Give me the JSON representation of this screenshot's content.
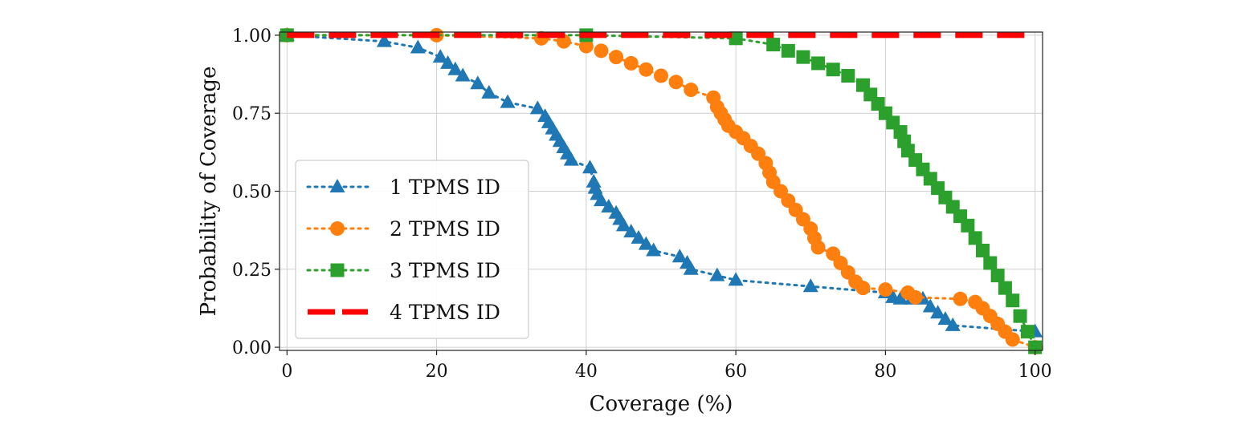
{
  "chart_data": {
    "type": "line",
    "title": "",
    "xlabel": "Coverage (%)",
    "ylabel": "Probability of Coverage",
    "xlim": [
      -1,
      101
    ],
    "ylim": [
      -0.01,
      1.01
    ],
    "xticks": [
      0,
      20,
      40,
      60,
      80,
      100
    ],
    "xtick_labels": [
      "0",
      "20",
      "40",
      "60",
      "80",
      "100"
    ],
    "yticks": [
      0,
      0.25,
      0.5,
      0.75,
      1.0
    ],
    "ytick_labels": [
      "0.00",
      "0.25",
      "0.50",
      "0.75",
      "1.00"
    ],
    "grid": true,
    "legend_position": "center-left",
    "series": [
      {
        "name": "1 TPMS ID",
        "color": "#1f77b4",
        "linestyle": "dotted",
        "marker": "triangle",
        "x": [
          0,
          13,
          17.5,
          20.5,
          21.5,
          22.5,
          23.5,
          25.5,
          27,
          29.5,
          33.5,
          34.5,
          35,
          35.5,
          36,
          36.5,
          37,
          37.5,
          38,
          40.5,
          41,
          41.2,
          41.5,
          42,
          43,
          44,
          44.5,
          45,
          46,
          47,
          48,
          49,
          52.5,
          53.5,
          54,
          57.5,
          60,
          70,
          80,
          81,
          82,
          83.5,
          85,
          86,
          87,
          88,
          89,
          100
        ],
        "y": [
          1.0,
          0.98,
          0.96,
          0.93,
          0.91,
          0.89,
          0.87,
          0.845,
          0.815,
          0.785,
          0.765,
          0.74,
          0.72,
          0.7,
          0.68,
          0.66,
          0.64,
          0.62,
          0.6,
          0.575,
          0.53,
          0.51,
          0.49,
          0.47,
          0.45,
          0.43,
          0.41,
          0.39,
          0.37,
          0.35,
          0.33,
          0.31,
          0.29,
          0.27,
          0.25,
          0.23,
          0.215,
          0.195,
          0.175,
          0.16,
          0.155,
          0.155,
          0.155,
          0.13,
          0.11,
          0.09,
          0.07,
          0.05
        ]
      },
      {
        "name": "2 TPMS ID",
        "color": "#ff7f0e",
        "linestyle": "dotted",
        "marker": "circle",
        "x": [
          0,
          20,
          34,
          37,
          40,
          42,
          44,
          46,
          48,
          50,
          52,
          54,
          57,
          57.5,
          58,
          58.5,
          59,
          60,
          61,
          62,
          63,
          64,
          64.5,
          65,
          66,
          67,
          68,
          69,
          70,
          70.5,
          71,
          73,
          74,
          75,
          76,
          77,
          80,
          83,
          84,
          90,
          92,
          93,
          94,
          95,
          96,
          97,
          100
        ],
        "y": [
          1.0,
          1.0,
          0.99,
          0.98,
          0.965,
          0.95,
          0.93,
          0.91,
          0.89,
          0.87,
          0.85,
          0.825,
          0.8,
          0.77,
          0.75,
          0.73,
          0.71,
          0.69,
          0.67,
          0.645,
          0.62,
          0.59,
          0.56,
          0.53,
          0.5,
          0.47,
          0.44,
          0.41,
          0.38,
          0.35,
          0.32,
          0.3,
          0.27,
          0.24,
          0.21,
          0.19,
          0.185,
          0.175,
          0.16,
          0.155,
          0.145,
          0.125,
          0.1,
          0.075,
          0.05,
          0.025,
          0
        ]
      },
      {
        "name": "3 TPMS ID",
        "color": "#2ca02c",
        "linestyle": "dotted",
        "marker": "square",
        "x": [
          0,
          40,
          60,
          65,
          67,
          69,
          71,
          73,
          75,
          77,
          78,
          79,
          80,
          81,
          82,
          82.5,
          83,
          84,
          85,
          86,
          87,
          88,
          89,
          90,
          91,
          92,
          93,
          94,
          95,
          96,
          97,
          98,
          99,
          100
        ],
        "y": [
          1.0,
          1.0,
          0.99,
          0.97,
          0.95,
          0.93,
          0.91,
          0.89,
          0.87,
          0.84,
          0.81,
          0.78,
          0.75,
          0.72,
          0.69,
          0.66,
          0.63,
          0.6,
          0.57,
          0.54,
          0.51,
          0.48,
          0.45,
          0.42,
          0.39,
          0.35,
          0.31,
          0.27,
          0.23,
          0.19,
          0.15,
          0.1,
          0.05,
          0
        ]
      },
      {
        "name": "4 TPMS ID",
        "color": "#ff0000",
        "linestyle": "dashed",
        "marker": "none",
        "x": [
          0,
          100
        ],
        "y": [
          1.0,
          1.0
        ]
      }
    ]
  }
}
